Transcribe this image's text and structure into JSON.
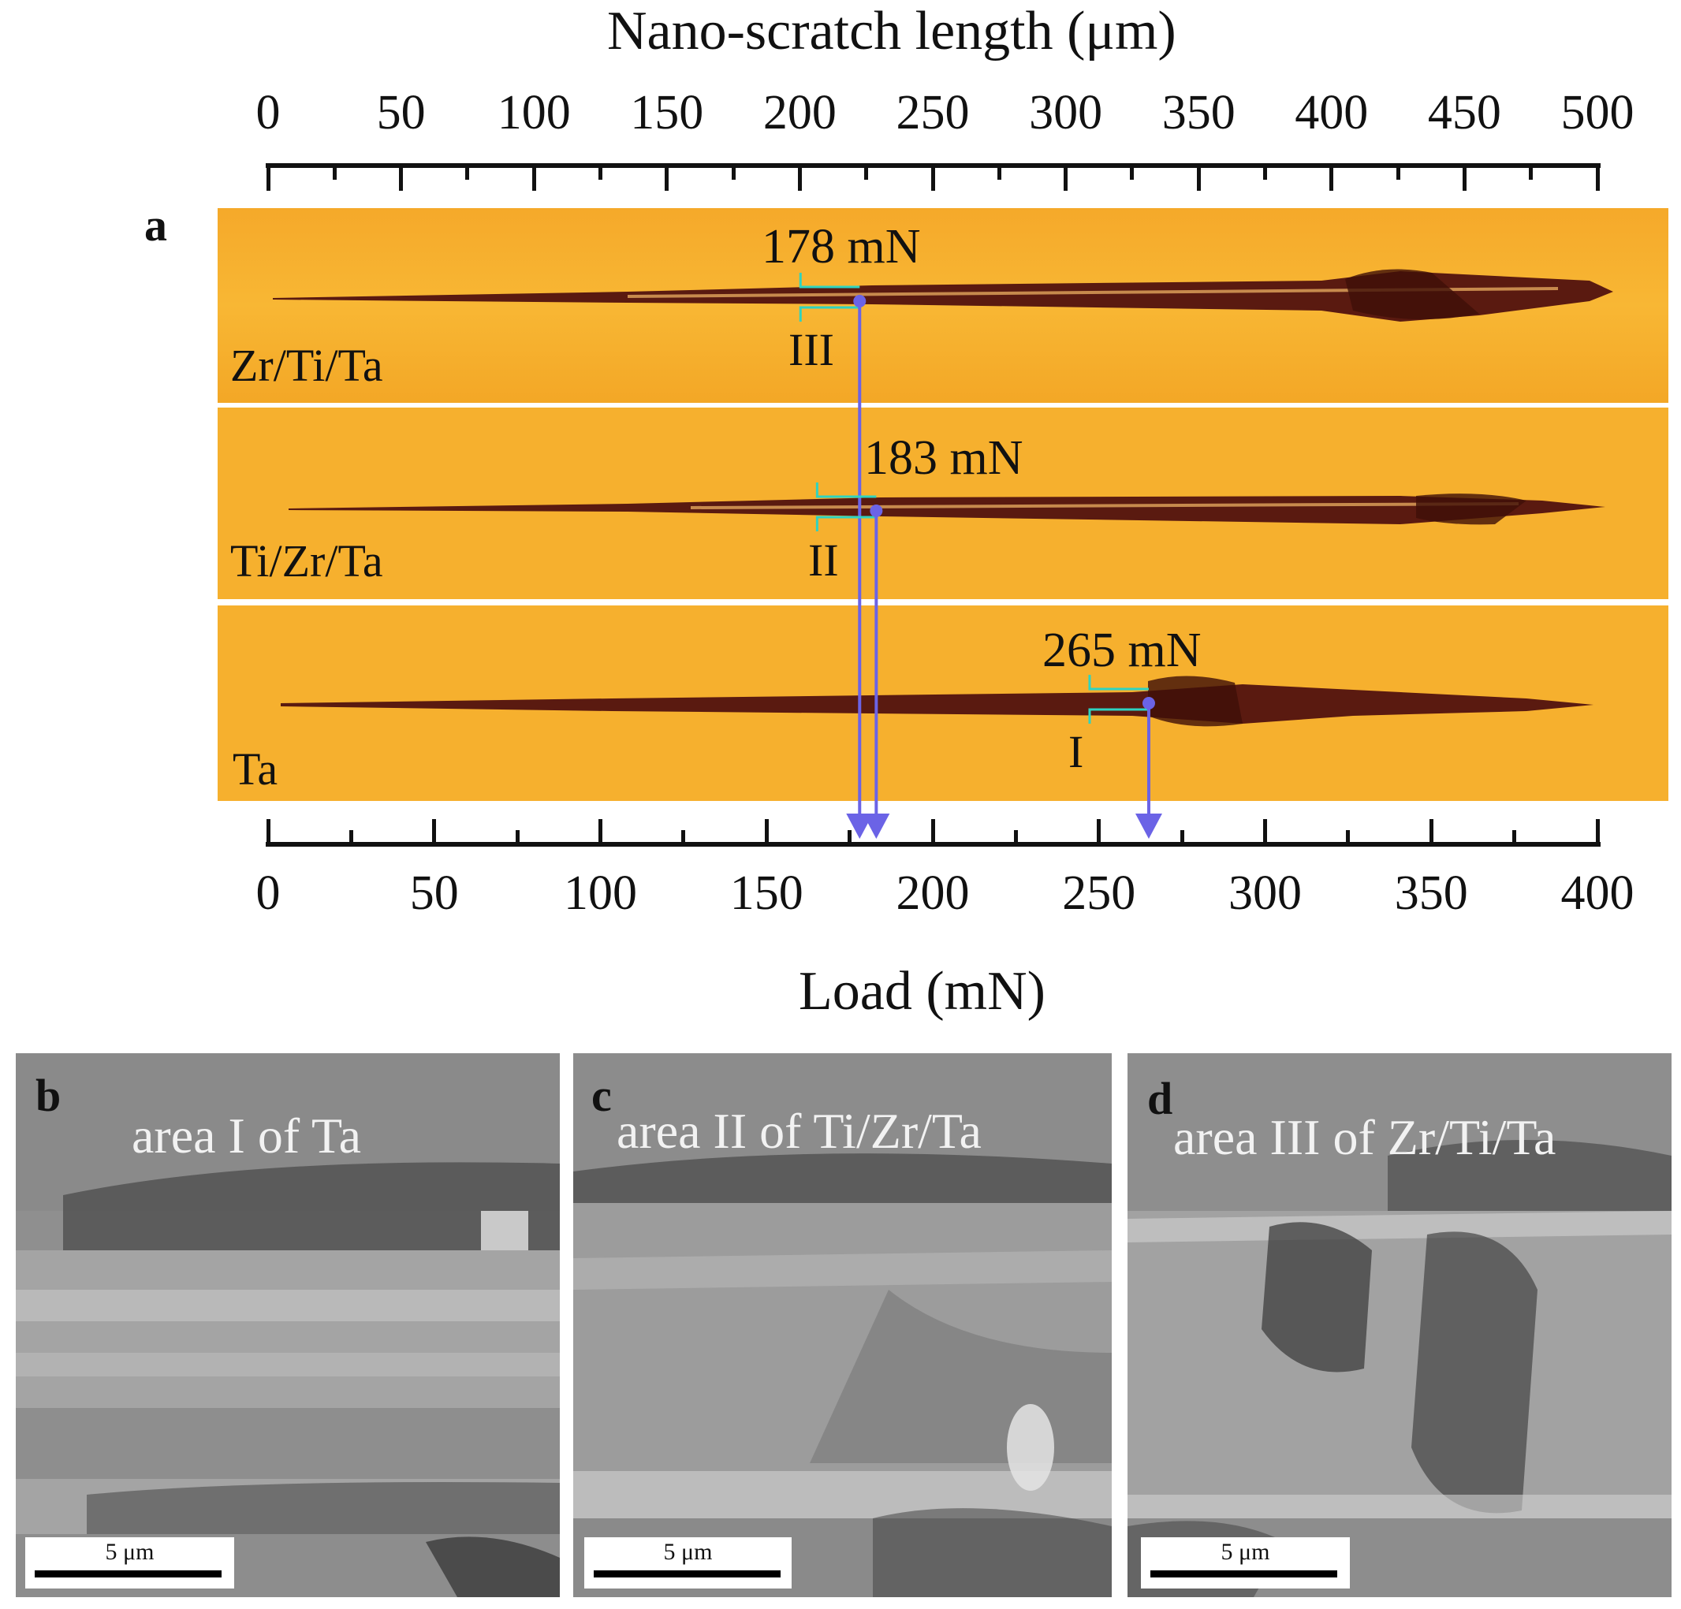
{
  "figure": {
    "top_axis": {
      "title": "Nano-scratch length (μm)",
      "ticks": [
        "0",
        "50",
        "100",
        "150",
        "200",
        "250",
        "300",
        "350",
        "400",
        "450",
        "500"
      ]
    },
    "bottom_axis": {
      "title": "Load (mN)",
      "ticks": [
        "0",
        "50",
        "100",
        "150",
        "200",
        "250",
        "300",
        "350",
        "400"
      ]
    },
    "panel_a": {
      "letter": "a",
      "strips": [
        {
          "sample": "Zr/Ti/Ta",
          "critical_load": "178 mN",
          "area": "III",
          "load_value": 178
        },
        {
          "sample": "Ti/Zr/Ta",
          "critical_load": "183 mN",
          "area": "II",
          "load_value": 183
        },
        {
          "sample": "Ta",
          "critical_load": "265 mN",
          "area": "I",
          "load_value": 265
        }
      ]
    },
    "sem_panels": [
      {
        "letter": "b",
        "title": "area I of Ta",
        "scale": "5 μm"
      },
      {
        "letter": "c",
        "title": "area II of Ti/Zr/Ta",
        "scale": "5 μm"
      },
      {
        "letter": "d",
        "title": "area III of Zr/Ti/Ta",
        "scale": "5 μm"
      }
    ],
    "colors": {
      "strip_bg": "#f7b22a",
      "track": "#5a1a10",
      "marker": "#6b63e6",
      "bracket": "#2fd3c0",
      "sem_bg": "#8c8c8c"
    }
  }
}
